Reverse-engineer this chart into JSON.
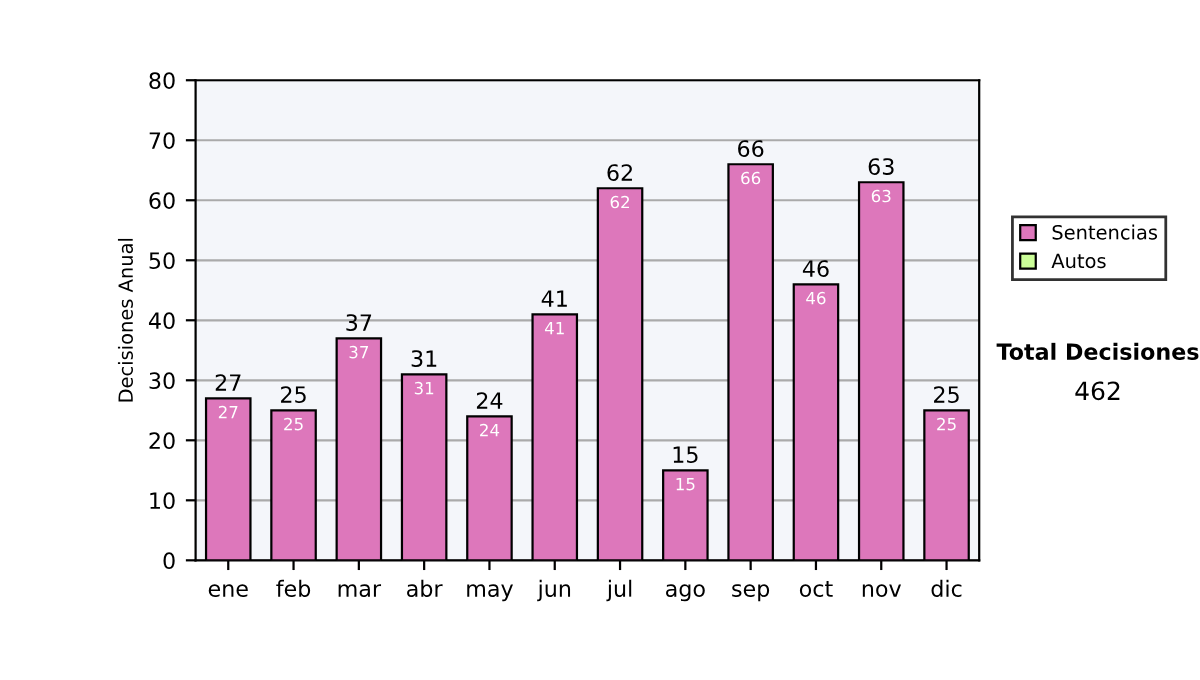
{
  "chart_data": {
    "type": "bar",
    "ylabel": "Decisiones Anual",
    "categories": [
      "ene",
      "feb",
      "mar",
      "abr",
      "may",
      "jun",
      "jul",
      "ago",
      "sep",
      "oct",
      "nov",
      "dic"
    ],
    "series": [
      {
        "name": "Sentencias",
        "color": "#dd77bb",
        "values": [
          27,
          25,
          37,
          31,
          24,
          41,
          62,
          15,
          66,
          46,
          63,
          25
        ]
      },
      {
        "name": "Autos",
        "color": "#ccff99",
        "values": [
          null,
          null,
          null,
          null,
          null,
          null,
          null,
          null,
          null,
          null,
          null,
          null
        ]
      }
    ],
    "stacked": true,
    "data_labels": true,
    "totals": [
      "27",
      "25",
      "37",
      "31",
      "24",
      "41",
      "62",
      "15",
      "66",
      "46",
      "63",
      "25"
    ],
    "ylim": [
      0,
      80
    ],
    "yticks": [
      0,
      10,
      20,
      30,
      40,
      50,
      60,
      70,
      80
    ],
    "grid": "y",
    "legend": "right",
    "annotations": [
      "Total Decisiones",
      "462"
    ]
  }
}
